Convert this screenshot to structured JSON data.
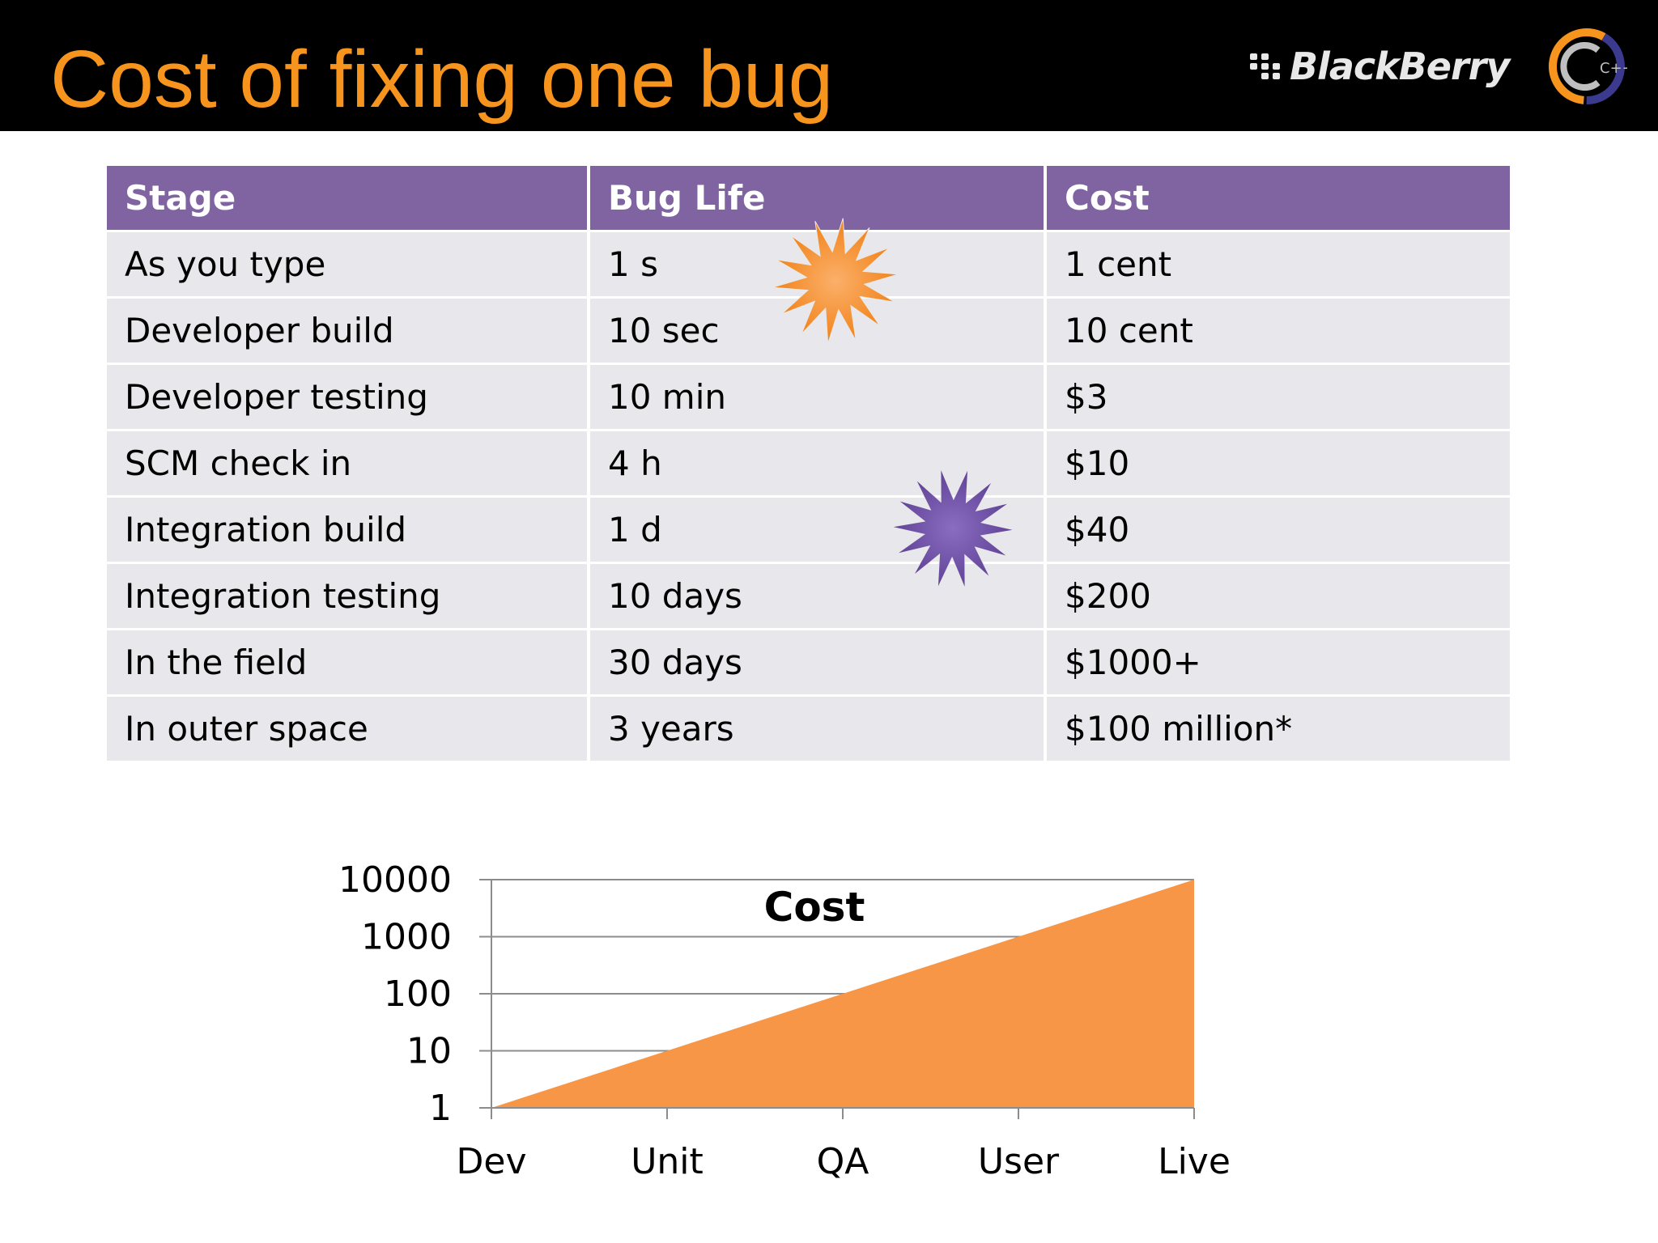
{
  "slide": {
    "title": "Cost of fixing one bug",
    "brand_logo_text": "BlackBerry",
    "cpp_logo_text": "C++",
    "accent_color": "#f7941d",
    "header_color": "#8064a2"
  },
  "table": {
    "headers": [
      "Stage",
      "Bug Life",
      "Cost"
    ],
    "rows": [
      [
        "As you type",
        "1 s",
        "1 cent"
      ],
      [
        "Developer build",
        "10 sec",
        "10 cent"
      ],
      [
        "Developer testing",
        "10 min",
        "$3"
      ],
      [
        "SCM check in",
        "4 h",
        "$10"
      ],
      [
        "Integration build",
        "1 d",
        "$40"
      ],
      [
        "Integration testing",
        "10 days",
        "$200"
      ],
      [
        "In the field",
        "30 days",
        "$1000+"
      ],
      [
        "In outer space",
        "3 years",
        "$100 million*"
      ]
    ]
  },
  "decorations": {
    "bursts": [
      {
        "icon": "orange-starburst-icon",
        "color": "#f7941d"
      },
      {
        "icon": "purple-starburst-icon",
        "color": "#7254a0"
      }
    ]
  },
  "chart_data": {
    "type": "area",
    "title": "Cost",
    "categories": [
      "Dev",
      "Unit",
      "QA",
      "User",
      "Live"
    ],
    "values": [
      1,
      10,
      100,
      1000,
      10000
    ],
    "y_scale": "log",
    "ylim": [
      1,
      10000
    ],
    "y_ticks": [
      "10000",
      "1000",
      "100",
      "10",
      "1"
    ],
    "grid": true,
    "legend": "none",
    "fill_color": "#f79646"
  }
}
